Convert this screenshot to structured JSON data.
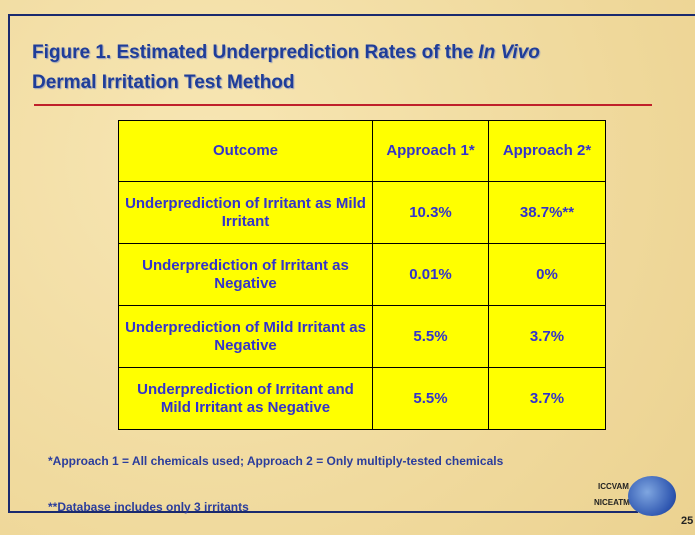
{
  "title": [
    "Figure 1. Estimated Underprediction Rates of the",
    "In Vivo",
    "Dermal Irritation Test Method"
  ],
  "table": {
    "header": [
      "Outcome",
      "Approach 1*",
      "Approach 2*"
    ],
    "rows": [
      [
        "Underprediction of Irritant as Mild Irritant",
        "10.3%",
        "38.7%**"
      ],
      [
        "Underprediction of Irritant as Negative",
        "0.01%",
        "0%"
      ],
      [
        "Underprediction of Mild Irritant as Negative",
        "5.5%",
        "3.7%"
      ],
      [
        "Underprediction of Irritant and Mild Irritant as Negative",
        "5.5%",
        "3.7%"
      ]
    ]
  },
  "footnotes": [
    "*Approach 1 = All chemicals used; Approach 2 = Only multiply-tested chemicals",
    "**Database includes only 3 irritants"
  ],
  "logo": [
    "ICCVAM",
    "NICEATM"
  ],
  "page_number": "25"
}
